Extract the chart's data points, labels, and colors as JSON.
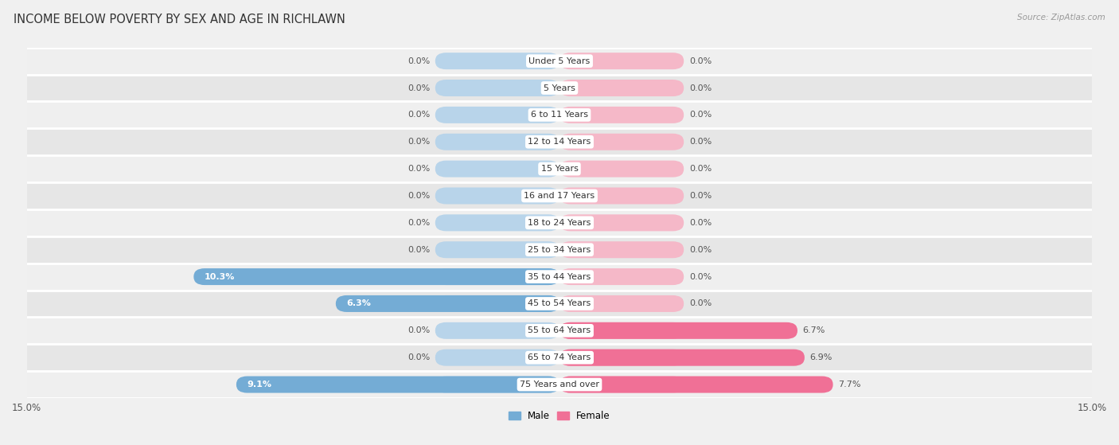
{
  "title": "INCOME BELOW POVERTY BY SEX AND AGE IN RICHLAWN",
  "source": "Source: ZipAtlas.com",
  "categories": [
    "Under 5 Years",
    "5 Years",
    "6 to 11 Years",
    "12 to 14 Years",
    "15 Years",
    "16 and 17 Years",
    "18 to 24 Years",
    "25 to 34 Years",
    "35 to 44 Years",
    "45 to 54 Years",
    "55 to 64 Years",
    "65 to 74 Years",
    "75 Years and over"
  ],
  "male": [
    0.0,
    0.0,
    0.0,
    0.0,
    0.0,
    0.0,
    0.0,
    0.0,
    10.3,
    6.3,
    0.0,
    0.0,
    9.1
  ],
  "female": [
    0.0,
    0.0,
    0.0,
    0.0,
    0.0,
    0.0,
    0.0,
    0.0,
    0.0,
    0.0,
    6.7,
    6.9,
    7.7
  ],
  "male_color": "#74acd5",
  "female_color": "#f07096",
  "male_light_color": "#b8d4ea",
  "female_light_color": "#f5b8c8",
  "xlim": 15.0,
  "default_bar_width": 3.5,
  "bg_color": "#f0f0f0",
  "row_colors": [
    "#efefef",
    "#e6e6e6"
  ],
  "title_fontsize": 10.5,
  "label_fontsize": 8.5,
  "value_fontsize": 8.0,
  "tick_fontsize": 8.5,
  "source_fontsize": 7.5
}
